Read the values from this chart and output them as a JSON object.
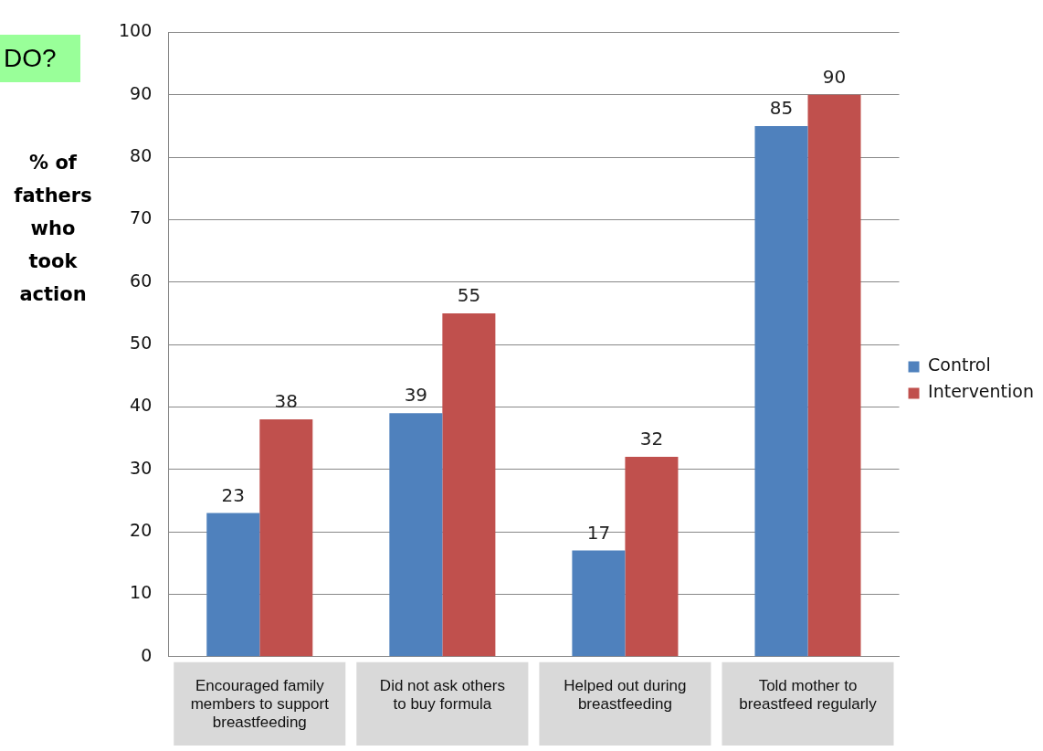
{
  "chart_data": {
    "type": "bar",
    "ylabel": "% of fathers who took action",
    "annotations": [
      "DO?"
    ],
    "categories": [
      "Encouraged family members to support breastfeeding",
      "Did not ask others to buy formula",
      "Helped out during breastfeeding",
      "Told mother to breastfeed regularly"
    ],
    "series": [
      {
        "name": "Control",
        "color": "#4f81bd",
        "values": [
          23,
          39,
          17,
          85
        ]
      },
      {
        "name": "Intervention",
        "color": "#c0504d",
        "values": [
          38,
          55,
          32,
          90
        ]
      }
    ],
    "ylim": [
      0,
      100
    ],
    "yticks": [
      0,
      10,
      20,
      30,
      40,
      50,
      60,
      70,
      80,
      90,
      100
    ],
    "grid": "y",
    "legend": "right",
    "data_labels": true
  }
}
